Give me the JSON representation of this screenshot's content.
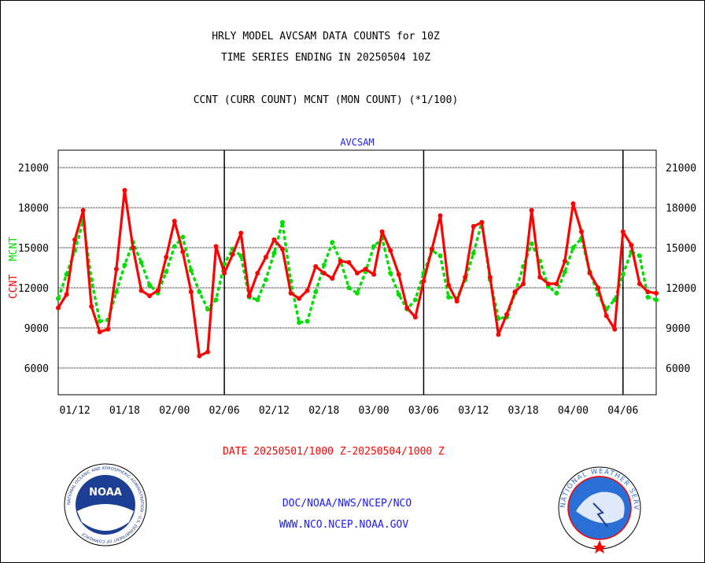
{
  "header": {
    "title_line1": "HRLY MODEL AVCSAM DATA COUNTS for 10Z",
    "title_line2": "TIME SERIES ENDING IN 20250504 10Z",
    "legend_line": "CCNT (CURR COUNT) MCNT (MON COUNT) (*1/100)"
  },
  "footer": {
    "date_range": "DATE 20250501/1000 Z-20250504/1000 Z",
    "org_line": "DOC/NOAA/NWS/NCEP/NCO",
    "url_line": "WWW.NCO.NCEP.NOAA.GOV"
  },
  "logos": {
    "noaa": "NOAA",
    "noaa_ring": "NATIONAL OCEANIC AND ATMOSPHERIC ADMINISTRATION · U.S. DEPARTMENT OF COMMERCE",
    "nws_ring": "NATIONAL WEATHER SERVICE"
  },
  "colors": {
    "ccnt": "#ff0000",
    "mcnt": "#00dd00",
    "subtitle": "#1a1aff",
    "noaa_blue": "#1c3f94",
    "nws_blue": "#2a6fd6"
  },
  "chart_data": {
    "type": "line",
    "subtitle": "AVCSAM",
    "ylabel_ccnt": "CCNT",
    "ylabel_mcnt": "MCNT",
    "y_ticks": [
      6000,
      9000,
      12000,
      15000,
      18000,
      21000
    ],
    "ylim": [
      4000,
      22300
    ],
    "x_tick_labels": [
      "01/12",
      "01/18",
      "02/00",
      "02/06",
      "02/12",
      "02/18",
      "03/00",
      "03/06",
      "03/12",
      "03/18",
      "04/00",
      "04/06"
    ],
    "x_tick_hours": [
      2,
      8,
      14,
      20,
      26,
      32,
      38,
      44,
      50,
      56,
      62,
      68
    ],
    "x_range_hours": [
      0,
      72
    ],
    "day_boundary_hours": [
      20,
      44,
      68
    ],
    "grid": true,
    "series": [
      {
        "name": "CCNT",
        "x_hours": [
          0,
          1,
          2,
          3,
          4,
          5,
          6,
          7,
          8,
          9,
          10,
          11,
          12,
          13,
          14,
          15,
          16,
          17,
          18,
          19,
          20,
          21,
          22,
          23,
          24,
          25,
          26,
          27,
          28,
          29,
          30,
          31,
          32,
          33,
          34,
          35,
          36,
          37,
          38,
          39,
          40,
          41,
          42,
          43,
          44,
          45,
          46,
          47,
          48,
          49,
          50,
          51,
          52,
          53,
          54,
          55,
          56,
          57,
          58,
          59,
          60,
          61,
          62,
          63,
          64,
          65,
          66,
          67,
          68,
          69,
          70,
          71,
          72
        ],
        "values": [
          10500,
          11500,
          15600,
          17800,
          10600,
          8700,
          8900,
          13400,
          19300,
          15000,
          11800,
          11400,
          11800,
          14300,
          17000,
          14700,
          11700,
          6900,
          7200,
          15100,
          13100,
          14500,
          16100,
          11400,
          13100,
          14300,
          15600,
          14900,
          11600,
          11200,
          11800,
          13600,
          13100,
          12700,
          14000,
          13900,
          13100,
          13400,
          13000,
          16200,
          14800,
          13000,
          10500,
          9800,
          12500,
          14900,
          17400,
          12200,
          11000,
          12800,
          16600,
          16900,
          12800,
          8500,
          10000,
          11700,
          12300,
          17800,
          12800,
          12300,
          12300,
          14000,
          18300,
          16200,
          13100,
          12000,
          9900,
          8900,
          16200,
          15200,
          12300,
          11700,
          11600
        ]
      },
      {
        "name": "MCNT",
        "x_hours": [
          0,
          1,
          2,
          3,
          4,
          5,
          6,
          7,
          8,
          9,
          10,
          11,
          12,
          13,
          14,
          15,
          16,
          17,
          18,
          19,
          20,
          21,
          22,
          23,
          24,
          25,
          26,
          27,
          28,
          29,
          30,
          31,
          32,
          33,
          34,
          35,
          36,
          37,
          38,
          39,
          40,
          41,
          42,
          43,
          44,
          45,
          46,
          47,
          48,
          49,
          50,
          51,
          52,
          53,
          54,
          55,
          56,
          57,
          58,
          59,
          60,
          61,
          62,
          63,
          64,
          65,
          66,
          67,
          68,
          69,
          70,
          71,
          72
        ],
        "values": [
          11200,
          13000,
          14800,
          17000,
          12600,
          9500,
          9600,
          11700,
          13700,
          15400,
          13900,
          12200,
          11600,
          13200,
          15100,
          15800,
          13300,
          11700,
          10400,
          11100,
          13800,
          14900,
          14400,
          11300,
          11100,
          12600,
          14600,
          16900,
          12500,
          9400,
          9500,
          11700,
          13700,
          15400,
          14000,
          12000,
          11600,
          13200,
          15100,
          15700,
          13100,
          11500,
          10400,
          11100,
          13100,
          14800,
          14400,
          11300,
          11200,
          12600,
          14600,
          16900,
          12600,
          9700,
          9800,
          11600,
          13600,
          15300,
          14000,
          12100,
          11600,
          13200,
          15000,
          15700,
          13200,
          11500,
          10400,
          11100,
          13000,
          14700,
          14400,
          11300,
          11100
        ]
      }
    ]
  }
}
